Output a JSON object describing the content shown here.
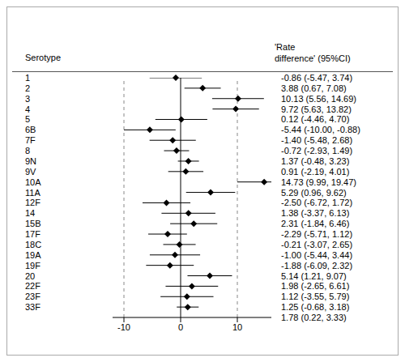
{
  "chart_data": {
    "type": "forest",
    "ylabel": "Serotype",
    "value_label_header": [
      "'Rate",
      "difference' (95%CI)"
    ],
    "categories": [
      "1",
      "2",
      "3",
      "4",
      "5",
      "6B",
      "7F",
      "8",
      "9N",
      "9V",
      "10A",
      "11A",
      "12F",
      "14",
      "15B",
      "17F",
      "18C",
      "19A",
      "19F",
      "20",
      "22F",
      "23F",
      "33F"
    ],
    "values": [
      -0.86,
      3.88,
      10.13,
      9.72,
      0.12,
      -5.44,
      -1.4,
      -0.72,
      1.37,
      0.91,
      14.73,
      5.29,
      -2.5,
      1.38,
      2.31,
      -2.29,
      -0.21,
      -1.0,
      -1.88,
      5.14,
      1.98,
      1.12,
      1.25
    ],
    "lower": [
      -5.47,
      0.67,
      5.56,
      5.63,
      -4.46,
      -10.0,
      -5.48,
      -2.93,
      -0.48,
      -2.19,
      9.99,
      0.96,
      -6.72,
      -3.37,
      -1.84,
      -5.71,
      -3.07,
      -5.44,
      -6.09,
      1.21,
      -2.65,
      -3.55,
      -0.68
    ],
    "upper": [
      3.74,
      7.08,
      14.69,
      13.82,
      4.7,
      -0.88,
      2.68,
      1.49,
      3.23,
      4.01,
      19.47,
      9.62,
      1.72,
      6.13,
      6.46,
      1.12,
      2.65,
      3.44,
      2.32,
      9.07,
      6.61,
      5.79,
      3.18
    ],
    "value_labels": [
      "-0.86 (-5.47, 3.74)",
      "3.88 (0.67, 7.08)",
      "10.13 (5.56, 14.69)",
      "9.72 (5.63, 13.82)",
      "0.12 (-4.46, 4.70)",
      "-5.44 (-10.00, -0.88)",
      "-1.40 (-5.48, 2.68)",
      "-0.72 (-2.93, 1.49)",
      "1.37 (-0.48, 3.23)",
      "0.91 (-2.19, 4.01)",
      "14.73 (9.99, 19.47)",
      "5.29 (0.96, 9.62)",
      "-2.50 (-6.72, 1.72)",
      "1.38 (-3.37, 6.13)",
      "2.31 (-1.84, 6.46)",
      "-2.29 (-5.71, 1.12)",
      "-0.21 (-3.07, 2.65)",
      "-1.00 (-5.44, 3.44)",
      "-1.88 (-6.09, 2.32)",
      "5.14 (1.21, 9.07)",
      "1.98 (-2.65, 6.61)",
      "1.12 (-3.55, 5.79)",
      "1.25 (-0.68, 3.18)"
    ],
    "annotations": [
      "1.78 (0.22, 3.33)"
    ],
    "xlim": [
      -12,
      16
    ],
    "xticks": [
      -10,
      0,
      10
    ],
    "grid": true,
    "marker": "diamond",
    "color": "#000000"
  }
}
